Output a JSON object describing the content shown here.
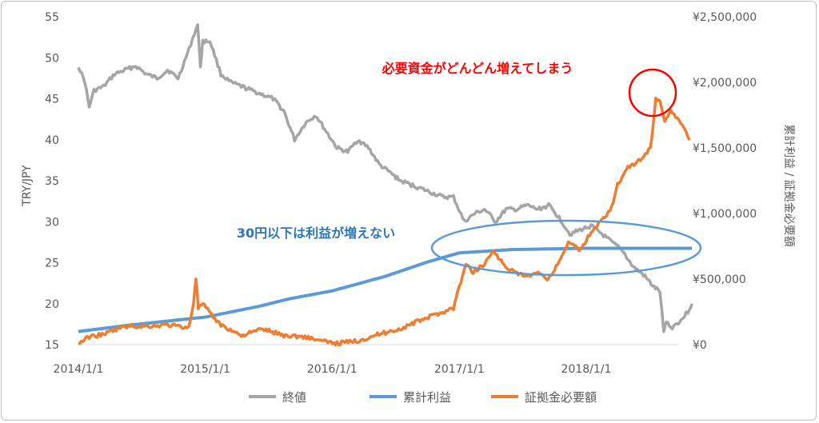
{
  "chart_data": {
    "type": "line",
    "title": "",
    "x_axis": {
      "ticks": [
        "2014/1/1",
        "2015/1/1",
        "2016/1/1",
        "2017/1/1",
        "2018/1/1"
      ]
    },
    "y_left": {
      "label": "TRY/JPY",
      "min": 15,
      "max": 55,
      "ticks": [
        "55",
        "50",
        "45",
        "40",
        "35",
        "30",
        "25",
        "20",
        "15"
      ]
    },
    "y_right": {
      "label": "累計利益 / 証拠金必要額",
      "min": 0,
      "max": 2500000,
      "ticks": [
        "¥2,500,000",
        "¥2,000,000",
        "¥1,500,000",
        "¥1,000,000",
        "¥500,000",
        "¥0"
      ]
    },
    "legend_position": "bottom",
    "series": [
      {
        "name": "終値",
        "axis": "left",
        "color": "#a5a5a5",
        "points": [
          [
            "2014-01-01",
            49
          ],
          [
            "2014-01-20",
            47
          ],
          [
            "2014-02-01",
            44
          ],
          [
            "2014-02-15",
            46
          ],
          [
            "2014-03-15",
            46.5
          ],
          [
            "2014-04-15",
            48
          ],
          [
            "2014-05-15",
            48.5
          ],
          [
            "2014-06-15",
            49
          ],
          [
            "2014-07-15",
            48
          ],
          [
            "2014-08-15",
            47.5
          ],
          [
            "2014-09-15",
            48.5
          ],
          [
            "2014-10-15",
            47.5
          ],
          [
            "2014-11-15",
            51
          ],
          [
            "2014-12-01",
            53
          ],
          [
            "2014-12-10",
            54
          ],
          [
            "2014-12-18",
            49
          ],
          [
            "2014-12-25",
            52
          ],
          [
            "2015-01-15",
            52
          ],
          [
            "2015-02-15",
            48
          ],
          [
            "2015-03-15",
            47
          ],
          [
            "2015-04-15",
            46.5
          ],
          [
            "2015-05-15",
            46
          ],
          [
            "2015-06-15",
            45.5
          ],
          [
            "2015-07-15",
            45
          ],
          [
            "2015-08-15",
            43.5
          ],
          [
            "2015-09-15",
            40
          ],
          [
            "2015-10-15",
            42
          ],
          [
            "2015-11-15",
            43
          ],
          [
            "2015-12-15",
            41
          ],
          [
            "2016-01-15",
            39
          ],
          [
            "2016-02-15",
            38.5
          ],
          [
            "2016-03-15",
            40
          ],
          [
            "2016-04-15",
            39
          ],
          [
            "2016-05-15",
            37
          ],
          [
            "2016-06-15",
            36
          ],
          [
            "2016-07-15",
            35
          ],
          [
            "2016-08-15",
            34.5
          ],
          [
            "2016-09-15",
            34
          ],
          [
            "2016-10-15",
            33.5
          ],
          [
            "2016-11-15",
            33
          ],
          [
            "2016-12-15",
            33
          ],
          [
            "2017-01-15",
            30
          ],
          [
            "2017-02-15",
            31
          ],
          [
            "2017-03-15",
            31.5
          ],
          [
            "2017-04-15",
            30
          ],
          [
            "2017-05-15",
            31.5
          ],
          [
            "2017-06-15",
            31.5
          ],
          [
            "2017-07-15",
            32
          ],
          [
            "2017-08-15",
            31.5
          ],
          [
            "2017-09-15",
            32
          ],
          [
            "2017-10-15",
            30.5
          ],
          [
            "2017-11-15",
            28.5
          ],
          [
            "2017-12-15",
            29
          ],
          [
            "2018-01-15",
            29.5
          ],
          [
            "2018-02-15",
            28.5
          ],
          [
            "2018-03-15",
            27.5
          ],
          [
            "2018-04-15",
            26.5
          ],
          [
            "2018-05-15",
            24.5
          ],
          [
            "2018-06-15",
            23.5
          ],
          [
            "2018-07-15",
            22
          ],
          [
            "2018-08-01",
            21.5
          ],
          [
            "2018-08-12",
            16.5
          ],
          [
            "2018-08-20",
            18
          ],
          [
            "2018-09-01",
            17
          ],
          [
            "2018-10-01",
            18
          ],
          [
            "2018-10-20",
            19
          ],
          [
            "2018-11-01",
            20
          ]
        ]
      },
      {
        "name": "累計利益",
        "axis": "right",
        "color": "#5b9bd5",
        "points": [
          [
            "2014-01-01",
            100000
          ],
          [
            "2014-06-01",
            150000
          ],
          [
            "2015-01-01",
            210000
          ],
          [
            "2015-06-01",
            290000
          ],
          [
            "2015-09-01",
            350000
          ],
          [
            "2016-01-01",
            410000
          ],
          [
            "2016-06-01",
            520000
          ],
          [
            "2016-10-01",
            630000
          ],
          [
            "2017-01-01",
            700000
          ],
          [
            "2017-06-01",
            725000
          ],
          [
            "2018-01-01",
            735000
          ],
          [
            "2018-11-01",
            735000
          ]
        ]
      },
      {
        "name": "証拠金必要額",
        "axis": "right",
        "color": "#ed7d31",
        "points": [
          [
            "2014-01-01",
            10000
          ],
          [
            "2014-02-01",
            60000
          ],
          [
            "2014-03-15",
            80000
          ],
          [
            "2014-04-15",
            110000
          ],
          [
            "2014-05-15",
            140000
          ],
          [
            "2014-07-15",
            140000
          ],
          [
            "2014-09-15",
            150000
          ],
          [
            "2014-11-15",
            130000
          ],
          [
            "2014-11-28",
            320000
          ],
          [
            "2014-12-05",
            510000
          ],
          [
            "2014-12-12",
            280000
          ],
          [
            "2014-12-25",
            310000
          ],
          [
            "2015-01-20",
            220000
          ],
          [
            "2015-02-15",
            150000
          ],
          [
            "2015-04-15",
            70000
          ],
          [
            "2015-06-15",
            120000
          ],
          [
            "2015-08-15",
            70000
          ],
          [
            "2015-10-15",
            60000
          ],
          [
            "2015-12-15",
            20000
          ],
          [
            "2016-01-15",
            10000
          ],
          [
            "2016-03-15",
            30000
          ],
          [
            "2016-05-15",
            80000
          ],
          [
            "2016-07-15",
            120000
          ],
          [
            "2016-09-15",
            190000
          ],
          [
            "2016-11-15",
            250000
          ],
          [
            "2016-12-15",
            280000
          ],
          [
            "2017-01-05",
            480000
          ],
          [
            "2017-01-20",
            610000
          ],
          [
            "2017-02-10",
            550000
          ],
          [
            "2017-03-15",
            620000
          ],
          [
            "2017-04-10",
            720000
          ],
          [
            "2017-05-10",
            600000
          ],
          [
            "2017-06-15",
            540000
          ],
          [
            "2017-07-15",
            520000
          ],
          [
            "2017-08-15",
            540000
          ],
          [
            "2017-09-15",
            500000
          ],
          [
            "2017-10-15",
            640000
          ],
          [
            "2017-11-15",
            790000
          ],
          [
            "2017-12-15",
            720000
          ],
          [
            "2018-01-15",
            860000
          ],
          [
            "2018-02-15",
            950000
          ],
          [
            "2018-03-15",
            1050000
          ],
          [
            "2018-04-01",
            1220000
          ],
          [
            "2018-05-01",
            1350000
          ],
          [
            "2018-06-01",
            1400000
          ],
          [
            "2018-06-20",
            1450000
          ],
          [
            "2018-07-05",
            1500000
          ],
          [
            "2018-07-20",
            1880000
          ],
          [
            "2018-08-01",
            1850000
          ],
          [
            "2018-08-15",
            1710000
          ],
          [
            "2018-09-01",
            1790000
          ],
          [
            "2018-09-20",
            1720000
          ],
          [
            "2018-10-10",
            1650000
          ],
          [
            "2018-10-25",
            1560000
          ]
        ]
      }
    ],
    "annotations": [
      {
        "text": "必要資金がどんどん増えてしまう",
        "color": "#ff0000"
      },
      {
        "text": "30円以下は利益が増えない",
        "color": "#2e75b6"
      }
    ]
  }
}
